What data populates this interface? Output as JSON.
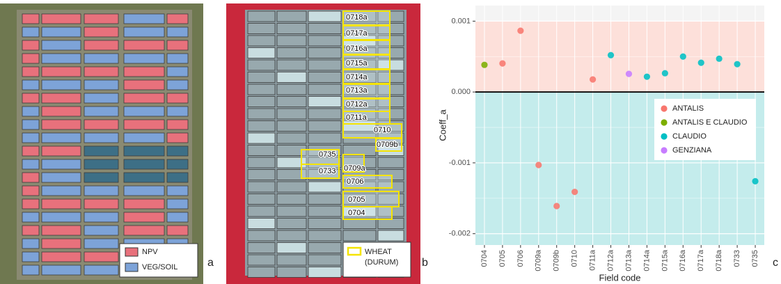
{
  "panels": {
    "a": {
      "label": "a",
      "legend": [
        {
          "label": "NPV",
          "color": "#e8717c"
        },
        {
          "label": "VEG/SOIL",
          "color": "#7da3d8"
        }
      ]
    },
    "b": {
      "label": "b",
      "legend": {
        "lines": [
          "WHEAT",
          "(DURUM)"
        ],
        "color": "#f5e400"
      },
      "fields": [
        "0718a",
        "0717a",
        "0716a",
        "0715a",
        "0714a",
        "0713a",
        "0712a",
        "0711a",
        "0710",
        "0709b",
        "0709a",
        "0735",
        "0733",
        "0706",
        "0705",
        "0704"
      ]
    }
  },
  "chart_data": {
    "type": "scatter",
    "panel_label": "c",
    "x_label": "Field code",
    "y_label": "Coeff_a",
    "categories": [
      "0704",
      "0705",
      "0706",
      "0709a",
      "0709b",
      "0710",
      "0711a",
      "0712a",
      "0713a",
      "0714a",
      "0715a",
      "0716a",
      "0717a",
      "0718a",
      "0733",
      "0735"
    ],
    "series": [
      {
        "name": "ANTALIS",
        "color": "#f8766d",
        "values": [
          null,
          0.000403,
          0.000865,
          -0.00103,
          -0.00161,
          -0.00141,
          0.000177,
          null,
          null,
          null,
          null,
          null,
          null,
          null,
          null,
          null
        ]
      },
      {
        "name": "ANTALIS E CLAUDIO",
        "color": "#7cae00",
        "values": [
          0.000383,
          null,
          null,
          null,
          null,
          null,
          null,
          null,
          null,
          null,
          null,
          null,
          null,
          null,
          null,
          null
        ]
      },
      {
        "name": "CLAUDIO",
        "color": "#00bfc4",
        "values": [
          null,
          null,
          null,
          null,
          null,
          null,
          null,
          0.00052,
          null,
          0.000216,
          0.000265,
          0.0005,
          0.000413,
          0.00047,
          0.000393,
          -0.00126
        ]
      },
      {
        "name": "GENZIANA",
        "color": "#c77cff",
        "values": [
          null,
          null,
          null,
          null,
          null,
          null,
          null,
          null,
          0.000256,
          null,
          null,
          null,
          null,
          null,
          null,
          null
        ]
      }
    ],
    "ylim": [
      -0.00216,
      0.00122
    ],
    "yticks": [
      -0.002,
      -0.001,
      {
        "value": 0,
        "label": "0.000"
      },
      0.001
    ],
    "grid": true,
    "minor_grid": true,
    "positive_band": {
      "from": 0,
      "to": 0.001,
      "color": "#fde0da"
    },
    "negative_band_color": "#c4ecec",
    "zero_line": true,
    "legend": "center-right"
  }
}
